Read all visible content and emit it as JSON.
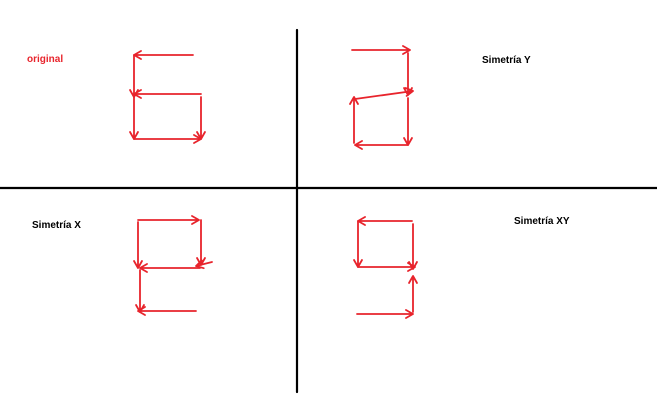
{
  "labels": {
    "original": "original",
    "symmetry_y": "Simetría Y",
    "symmetry_x": "Simetría X",
    "symmetry_xy": "Simetría XY"
  },
  "colors": {
    "arrow": "#e8242c",
    "divider": "#000000",
    "original_label": "#e8242c",
    "text": "#000000"
  }
}
